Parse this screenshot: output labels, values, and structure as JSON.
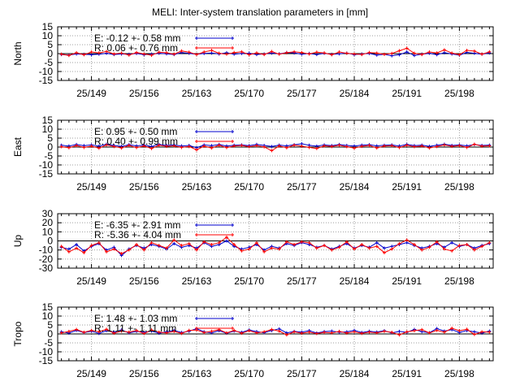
{
  "title": "MELI: Inter-system translation parameters in [mm]",
  "colors": {
    "E": "#0000cc",
    "R": "#ff0000",
    "zero": "#000000",
    "grid": "#a0a0a0"
  },
  "x_ticks": [
    "25/149",
    "25/156",
    "25/163",
    "25/170",
    "25/177",
    "25/184",
    "25/191",
    "25/198"
  ],
  "chart_data": [
    {
      "type": "line",
      "ylabel": "North",
      "ylim": [
        -15,
        15
      ],
      "yticks": [
        15,
        10,
        5,
        0,
        -5,
        -10,
        -15
      ],
      "xlim": [
        144.5,
        202.5
      ],
      "legend": [
        {
          "series": "E",
          "text": "E:  -0.12 +- 0.58 mm"
        },
        {
          "series": "R",
          "text": "R:  0.06 +- 0.76 mm"
        }
      ],
      "series": [
        {
          "name": "E",
          "x": [
            145,
            146,
            147,
            148,
            149,
            150,
            151,
            152,
            153,
            154,
            155,
            156,
            157,
            158,
            159,
            160,
            161,
            162,
            163,
            164,
            165,
            166,
            167,
            168,
            169,
            170,
            171,
            172,
            173,
            174,
            175,
            176,
            177,
            178,
            179,
            180,
            181,
            182,
            183,
            184,
            185,
            186,
            187,
            188,
            189,
            190,
            191,
            192,
            193,
            194,
            195,
            196,
            197,
            198,
            199,
            200,
            201,
            202
          ],
          "y": [
            -0.5,
            -0.8,
            -0.2,
            -0.4,
            -0.6,
            -0.3,
            0.2,
            -0.5,
            -0.2,
            -0.4,
            0.1,
            -0.6,
            -0.3,
            0.2,
            -0.1,
            -0.5,
            0.6,
            0.2,
            -0.4,
            0.1,
            0.3,
            -0.2,
            0.5,
            -0.3,
            0.1,
            0.2,
            -0.5,
            -0.2,
            0.3,
            -0.1,
            0.6,
            0.4,
            -0.3,
            0.1,
            -0.5,
            0.2,
            -0.4,
            -0.1,
            0.3,
            -0.6,
            -0.2,
            0.1,
            -0.8,
            -0.4,
            -1.2,
            -0.6,
            0.9,
            -1.0,
            -0.3,
            0.2,
            -0.6,
            0.5,
            -0.2,
            -0.8,
            0.7,
            0.2,
            -0.3,
            0.4
          ]
        },
        {
          "name": "R",
          "x": [
            145,
            146,
            147,
            148,
            149,
            150,
            151,
            152,
            153,
            154,
            155,
            156,
            157,
            158,
            159,
            160,
            161,
            162,
            163,
            164,
            165,
            166,
            167,
            168,
            169,
            170,
            171,
            172,
            173,
            174,
            175,
            176,
            177,
            178,
            179,
            180,
            181,
            182,
            183,
            184,
            185,
            186,
            187,
            188,
            189,
            190,
            191,
            192,
            193,
            194,
            195,
            196,
            197,
            198,
            199,
            200,
            201,
            202
          ],
          "y": [
            -0.3,
            -1.0,
            0.5,
            -0.6,
            0.9,
            0.4,
            1.2,
            -0.2,
            0.3,
            -0.8,
            0.6,
            -0.2,
            -0.9,
            0.8,
            0.5,
            -0.3,
            1.5,
            0.8,
            -0.5,
            0.9,
            1.8,
            0.2,
            -0.3,
            0.6,
            1.0,
            -0.6,
            0.4,
            -0.5,
            1.2,
            -0.3,
            0.5,
            1.0,
            0.6,
            -0.2,
            0.8,
            0.4,
            -0.6,
            0.9,
            0.2,
            -0.2,
            -0.5,
            0.6,
            0.3,
            -0.4,
            0.1,
            1.6,
            3.0,
            0.2,
            -0.5,
            0.9,
            0.4,
            2.1,
            0.3,
            -0.6,
            1.8,
            1.4,
            -0.3,
            1.0
          ]
        }
      ]
    },
    {
      "type": "line",
      "ylabel": "East",
      "ylim": [
        -15,
        15
      ],
      "yticks": [
        15,
        10,
        5,
        0,
        -5,
        -10,
        -15
      ],
      "xlim": [
        144.5,
        202.5
      ],
      "legend": [
        {
          "series": "E",
          "text": "E:   0.95 +- 0.50 mm"
        },
        {
          "series": "R",
          "text": "R:  0.40 +- 0.99 mm"
        }
      ],
      "series": [
        {
          "name": "E",
          "x": [
            145,
            146,
            147,
            148,
            149,
            150,
            151,
            152,
            153,
            154,
            155,
            156,
            157,
            158,
            159,
            160,
            161,
            162,
            163,
            164,
            165,
            166,
            167,
            168,
            169,
            170,
            171,
            172,
            173,
            174,
            175,
            176,
            177,
            178,
            179,
            180,
            181,
            182,
            183,
            184,
            185,
            186,
            187,
            188,
            189,
            190,
            191,
            192,
            193,
            194,
            195,
            196,
            197,
            198,
            199,
            200,
            201,
            202
          ],
          "y": [
            1.0,
            0.6,
            1.4,
            0.8,
            1.2,
            0.5,
            1.6,
            0.9,
            0.4,
            1.3,
            0.7,
            1.1,
            0.3,
            1.5,
            0.9,
            1.2,
            0.6,
            0.9,
            -0.4,
            1.2,
            0.8,
            1.4,
            0.6,
            1.0,
            1.2,
            0.8,
            1.5,
            0.9,
            0.3,
            1.1,
            0.7,
            1.3,
            1.8,
            1.0,
            0.5,
            1.2,
            0.8,
            1.4,
            0.9,
            0.6,
            1.1,
            1.3,
            0.7,
            1.0,
            1.2,
            0.6,
            1.5,
            0.8,
            1.1,
            0.4,
            1.0,
            1.6,
            0.9,
            1.2,
            0.7,
            1.4,
            0.9,
            1.1
          ]
        },
        {
          "name": "R",
          "x": [
            145,
            146,
            147,
            148,
            149,
            150,
            151,
            152,
            153,
            154,
            155,
            156,
            157,
            158,
            159,
            160,
            161,
            162,
            163,
            164,
            165,
            166,
            167,
            168,
            169,
            170,
            171,
            172,
            173,
            174,
            175,
            176,
            177,
            178,
            179,
            180,
            181,
            182,
            183,
            184,
            185,
            186,
            187,
            188,
            189,
            190,
            191,
            192,
            193,
            194,
            195,
            196,
            197,
            198,
            199,
            200,
            201,
            202
          ],
          "y": [
            0.2,
            -0.4,
            0.8,
            -0.2,
            0.5,
            -0.6,
            1.2,
            0.3,
            -0.5,
            0.9,
            -0.3,
            0.6,
            -0.8,
            1.0,
            0.4,
            0.7,
            -0.2,
            0.3,
            -1.6,
            0.5,
            -0.5,
            1.0,
            -0.3,
            0.6,
            0.9,
            0.2,
            0.8,
            0.1,
            -2.0,
            0.6,
            -0.4,
            1.1,
            0.5,
            -0.2,
            -0.8,
            0.7,
            0.3,
            1.0,
            0.2,
            -0.6,
            0.4,
            0.9,
            -0.5,
            0.6,
            0.8,
            -0.3,
            1.0,
            0.2,
            0.6,
            -0.5,
            0.3,
            1.2,
            0.4,
            0.8,
            -0.2,
            1.6,
            0.5,
            0.7
          ]
        }
      ]
    },
    {
      "type": "line",
      "ylabel": "Up",
      "ylim": [
        -30,
        30
      ],
      "yticks": [
        30,
        20,
        10,
        0,
        -10,
        -20,
        -30
      ],
      "xlim": [
        144.5,
        202.5
      ],
      "legend": [
        {
          "series": "E",
          "text": "E:  -6.35 +- 2.91 mm"
        },
        {
          "series": "R",
          "text": "R:  -5.36 +- 4.04 mm"
        }
      ],
      "series": [
        {
          "name": "E",
          "x": [
            145,
            146,
            147,
            148,
            149,
            150,
            151,
            152,
            153,
            154,
            155,
            156,
            157,
            158,
            159,
            160,
            161,
            162,
            163,
            164,
            165,
            166,
            167,
            168,
            169,
            170,
            171,
            172,
            173,
            174,
            175,
            176,
            177,
            178,
            179,
            180,
            181,
            182,
            183,
            184,
            185,
            186,
            187,
            188,
            189,
            190,
            191,
            192,
            193,
            194,
            195,
            196,
            197,
            198,
            199,
            200,
            201,
            202
          ],
          "y": [
            -7,
            -9,
            -4,
            -11,
            -6,
            -3,
            -10,
            -7,
            -16,
            -9,
            -5,
            -8,
            -4,
            -6,
            -9,
            -3,
            -7,
            -5,
            -8,
            -2,
            -6,
            -4,
            0,
            -6,
            -9,
            -7,
            -4,
            -10,
            -6,
            -8,
            -3,
            -5,
            -2,
            -4,
            -7,
            -5,
            -9,
            -6,
            -3,
            -8,
            -5,
            -7,
            -2,
            -8,
            -6,
            -4,
            -2,
            -5,
            -8,
            -6,
            -3,
            -7,
            -2,
            -6,
            -4,
            -8,
            -5,
            -3
          ]
        },
        {
          "name": "R",
          "x": [
            145,
            146,
            147,
            148,
            149,
            150,
            151,
            152,
            153,
            154,
            155,
            156,
            157,
            158,
            159,
            160,
            161,
            162,
            163,
            164,
            165,
            166,
            167,
            168,
            169,
            170,
            171,
            172,
            173,
            174,
            175,
            176,
            177,
            178,
            179,
            180,
            181,
            182,
            183,
            184,
            185,
            186,
            187,
            188,
            189,
            190,
            191,
            192,
            193,
            194,
            195,
            196,
            197,
            198,
            199,
            200,
            201,
            202
          ],
          "y": [
            -6,
            -12,
            -8,
            -13,
            -5,
            -2,
            -12,
            -9,
            -14,
            -10,
            -4,
            -10,
            -2,
            -5,
            -8,
            1,
            -5,
            -3,
            -10,
            -1,
            -4,
            -2,
            4,
            -4,
            -11,
            -9,
            -2,
            -12,
            -8,
            -9,
            -1,
            -4,
            -1,
            -2,
            -8,
            -5,
            -10,
            -7,
            -1,
            -9,
            -4,
            -8,
            -6,
            -13,
            -9,
            -3,
            1,
            -4,
            -10,
            -7,
            -1,
            -9,
            -11,
            -5,
            -4,
            -10,
            -6,
            -2
          ]
        }
      ]
    },
    {
      "type": "line",
      "ylabel": "Tropo",
      "ylim": [
        -15,
        15
      ],
      "yticks": [
        15,
        10,
        5,
        0,
        -5,
        -10,
        -15
      ],
      "xlim": [
        144.5,
        202.5
      ],
      "legend": [
        {
          "series": "E",
          "text": "E:   1.48 +- 1.03 mm"
        },
        {
          "series": "R",
          "text": "R:  1.11 +- 1.11 mm"
        }
      ],
      "series": [
        {
          "name": "E",
          "x": [
            145,
            146,
            147,
            148,
            149,
            150,
            151,
            152,
            153,
            154,
            155,
            156,
            157,
            158,
            159,
            160,
            161,
            162,
            163,
            164,
            165,
            166,
            167,
            168,
            169,
            170,
            171,
            172,
            173,
            174,
            175,
            176,
            177,
            178,
            179,
            180,
            181,
            182,
            183,
            184,
            185,
            186,
            187,
            188,
            189,
            190,
            191,
            192,
            193,
            194,
            195,
            196,
            197,
            198,
            199,
            200,
            201,
            202
          ],
          "y": [
            1.2,
            0.5,
            2.0,
            0.8,
            1.5,
            0.3,
            1.8,
            1.0,
            2.2,
            0.6,
            1.4,
            0.9,
            1.6,
            0.4,
            1.2,
            2.0,
            0.8,
            1.5,
            3.0,
            1.2,
            0.6,
            1.8,
            0.4,
            1.6,
            0.9,
            2.2,
            1.3,
            0.7,
            1.9,
            2.8,
            0.6,
            1.4,
            1.0,
            1.8,
            0.5,
            1.3,
            1.6,
            0.9,
            1.2,
            2.0,
            0.8,
            1.5,
            1.1,
            1.8,
            0.6,
            1.4,
            0.9,
            2.5,
            1.3,
            0.7,
            3.0,
            1.6,
            2.4,
            0.8,
            1.9,
            1.2,
            0.5,
            1.6
          ]
        },
        {
          "name": "R",
          "x": [
            145,
            146,
            147,
            148,
            149,
            150,
            151,
            152,
            153,
            154,
            155,
            156,
            157,
            158,
            159,
            160,
            161,
            162,
            163,
            164,
            165,
            166,
            167,
            168,
            169,
            170,
            171,
            172,
            173,
            174,
            175,
            176,
            177,
            178,
            179,
            180,
            181,
            182,
            183,
            184,
            185,
            186,
            187,
            188,
            189,
            190,
            191,
            192,
            193,
            194,
            195,
            196,
            197,
            198,
            199,
            200,
            201,
            202
          ],
          "y": [
            0.6,
            1.4,
            2.5,
            0.9,
            2.0,
            1.2,
            2.6,
            0.4,
            1.6,
            1.0,
            1.9,
            0.2,
            2.2,
            1.0,
            0.6,
            1.4,
            0.3,
            2.0,
            2.2,
            0.8,
            1.5,
            2.4,
            0.6,
            2.0,
            0.4,
            1.8,
            0.6,
            1.2,
            2.5,
            1.6,
            -0.5,
            1.2,
            0.4,
            1.0,
            0.2,
            0.9,
            0.6,
            1.4,
            0.5,
            1.2,
            0.3,
            1.0,
            0.6,
            1.5,
            0.9,
            -0.5,
            1.2,
            1.8,
            2.4,
            0.6,
            2.0,
            1.0,
            3.2,
            1.8,
            2.6,
            -0.3,
            1.2,
            1.0
          ]
        }
      ]
    }
  ]
}
